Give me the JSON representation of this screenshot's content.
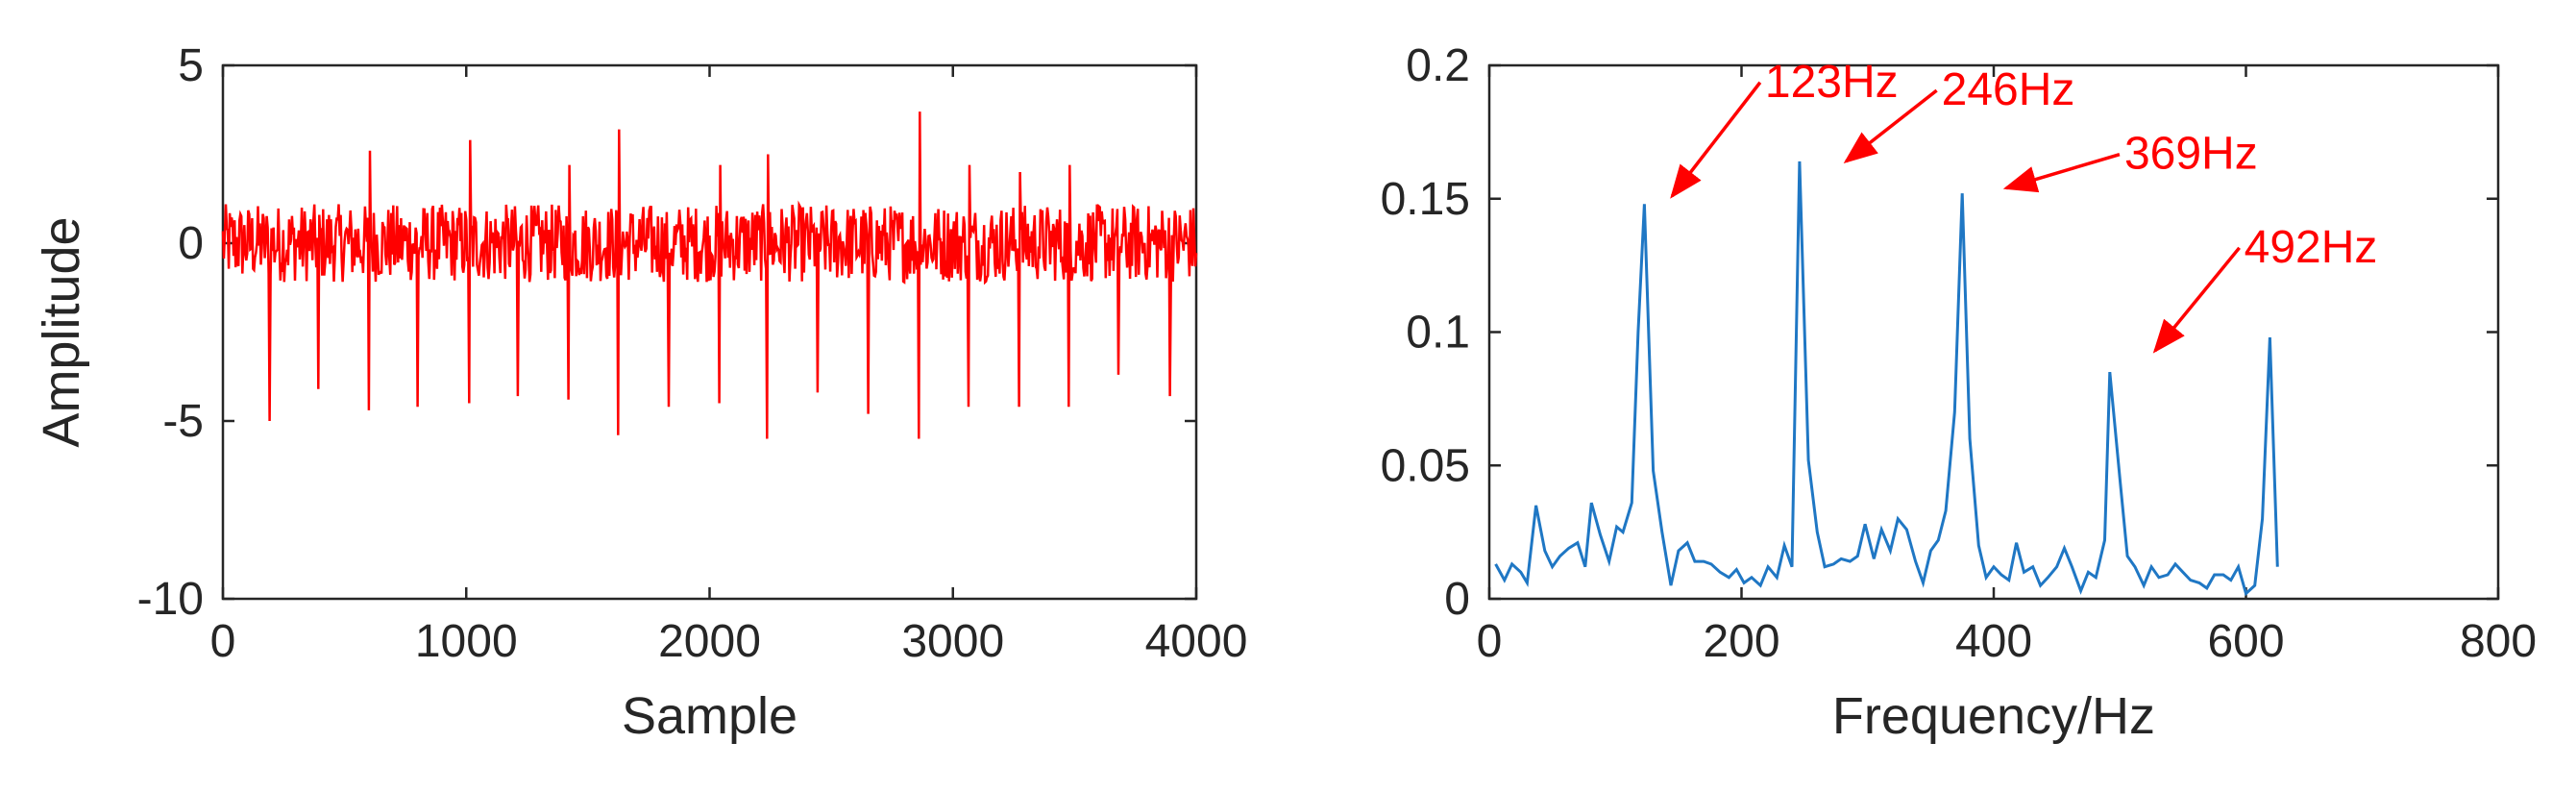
{
  "chart_data": [
    {
      "type": "line",
      "xlabel": "Sample",
      "ylabel": "Amplitude",
      "xlim": [
        0,
        4000
      ],
      "ylim": [
        -10,
        5
      ],
      "xticks": [
        "0",
        "1000",
        "2000",
        "3000",
        "4000"
      ],
      "yticks": [
        "-10",
        "-5",
        "0",
        "5"
      ],
      "grid": false,
      "color": "#ff0000",
      "series": [
        {
          "noise_amplitude": 1.1,
          "spikes": [
            {
              "x": 190,
              "y": -5.0
            },
            {
              "x": 390,
              "y": -4.1
            },
            {
              "x": 600,
              "y": -4.7
            },
            {
              "x": 800,
              "y": -4.6
            },
            {
              "x": 1010,
              "y": -4.5
            },
            {
              "x": 1210,
              "y": -4.3
            },
            {
              "x": 1420,
              "y": -4.4
            },
            {
              "x": 1625,
              "y": -5.4
            },
            {
              "x": 1830,
              "y": -4.6
            },
            {
              "x": 2040,
              "y": -4.5
            },
            {
              "x": 2235,
              "y": -5.5
            },
            {
              "x": 2445,
              "y": -4.2
            },
            {
              "x": 2650,
              "y": -4.8
            },
            {
              "x": 2860,
              "y": -5.5
            },
            {
              "x": 3065,
              "y": -4.6
            },
            {
              "x": 3270,
              "y": -4.6
            },
            {
              "x": 3475,
              "y": -4.6
            },
            {
              "x": 3680,
              "y": -3.7
            },
            {
              "x": 3890,
              "y": -4.3
            }
          ],
          "peaks": [
            {
              "x": 600,
              "y": 2.6
            },
            {
              "x": 1010,
              "y": 2.9
            },
            {
              "x": 1420,
              "y": 2.2
            },
            {
              "x": 1625,
              "y": 3.2
            },
            {
              "x": 2040,
              "y": 2.2
            },
            {
              "x": 2235,
              "y": 2.5
            },
            {
              "x": 2860,
              "y": 3.7
            },
            {
              "x": 3065,
              "y": 2.2
            },
            {
              "x": 3270,
              "y": 2.0
            },
            {
              "x": 3475,
              "y": 2.2
            }
          ]
        }
      ]
    },
    {
      "type": "line",
      "xlabel": "Frequency/Hz",
      "ylabel": "",
      "xlim": [
        0,
        800
      ],
      "ylim": [
        0,
        0.2
      ],
      "xticks": [
        "0",
        "200",
        "400",
        "600",
        "800"
      ],
      "yticks": [
        "0",
        "0.05",
        "0.1",
        "0.15",
        "0.2"
      ],
      "grid": false,
      "color": "#1f77c4",
      "series": [
        {
          "x": [
            5,
            12,
            18,
            25,
            30,
            37,
            44,
            50,
            56,
            63,
            70,
            76,
            81,
            88,
            95,
            101,
            106,
            113,
            118,
            123,
            130,
            137,
            144,
            150,
            157,
            163,
            170,
            176,
            183,
            190,
            196,
            202,
            208,
            215,
            221,
            228,
            234,
            240,
            246,
            253,
            260,
            266,
            273,
            279,
            286,
            292,
            298,
            305,
            311,
            318,
            324,
            331,
            338,
            344,
            350,
            356,
            362,
            369,
            375,
            381,
            388,
            394,
            400,
            406,
            412,
            418,
            424,
            431,
            437,
            443,
            450,
            456,
            462,
            469,
            475,
            481,
            488,
            492,
            500,
            506,
            512,
            519,
            525,
            531,
            538,
            544,
            550,
            556,
            563,
            569,
            575,
            582,
            588,
            594,
            600,
            607,
            613,
            619,
            625
          ],
          "y": [
            0.013,
            0.007,
            0.013,
            0.01,
            0.006,
            0.035,
            0.018,
            0.012,
            0.016,
            0.019,
            0.021,
            0.012,
            0.036,
            0.024,
            0.014,
            0.027,
            0.025,
            0.036,
            0.1,
            0.148,
            0.048,
            0.025,
            0.005,
            0.018,
            0.021,
            0.014,
            0.014,
            0.013,
            0.01,
            0.008,
            0.011,
            0.006,
            0.008,
            0.005,
            0.012,
            0.008,
            0.02,
            0.012,
            0.164,
            0.052,
            0.025,
            0.012,
            0.013,
            0.015,
            0.014,
            0.016,
            0.028,
            0.015,
            0.026,
            0.018,
            0.03,
            0.026,
            0.014,
            0.006,
            0.018,
            0.022,
            0.033,
            0.07,
            0.152,
            0.06,
            0.02,
            0.008,
            0.012,
            0.009,
            0.007,
            0.021,
            0.01,
            0.012,
            0.005,
            0.008,
            0.012,
            0.019,
            0.012,
            0.003,
            0.01,
            0.008,
            0.022,
            0.085,
            0.045,
            0.016,
            0.012,
            0.005,
            0.012,
            0.008,
            0.009,
            0.013,
            0.01,
            0.007,
            0.006,
            0.004,
            0.009,
            0.009,
            0.007,
            0.012,
            0.002,
            0.005,
            0.03,
            0.098,
            0.012
          ]
        }
      ],
      "annotations": [
        {
          "text": "123Hz",
          "x": 230,
          "y": 0.19,
          "arrow_to": [
            145,
            0.151
          ]
        },
        {
          "text": "246Hz",
          "x": 370,
          "y": 0.187,
          "arrow_to": [
            283,
            0.164
          ]
        },
        {
          "text": "369Hz",
          "x": 515,
          "y": 0.163,
          "arrow_to": [
            410,
            0.154
          ]
        },
        {
          "text": "492Hz",
          "x": 610,
          "y": 0.128,
          "arrow_to": [
            528,
            0.093
          ]
        }
      ],
      "annotation_color": "#ff0000"
    }
  ]
}
